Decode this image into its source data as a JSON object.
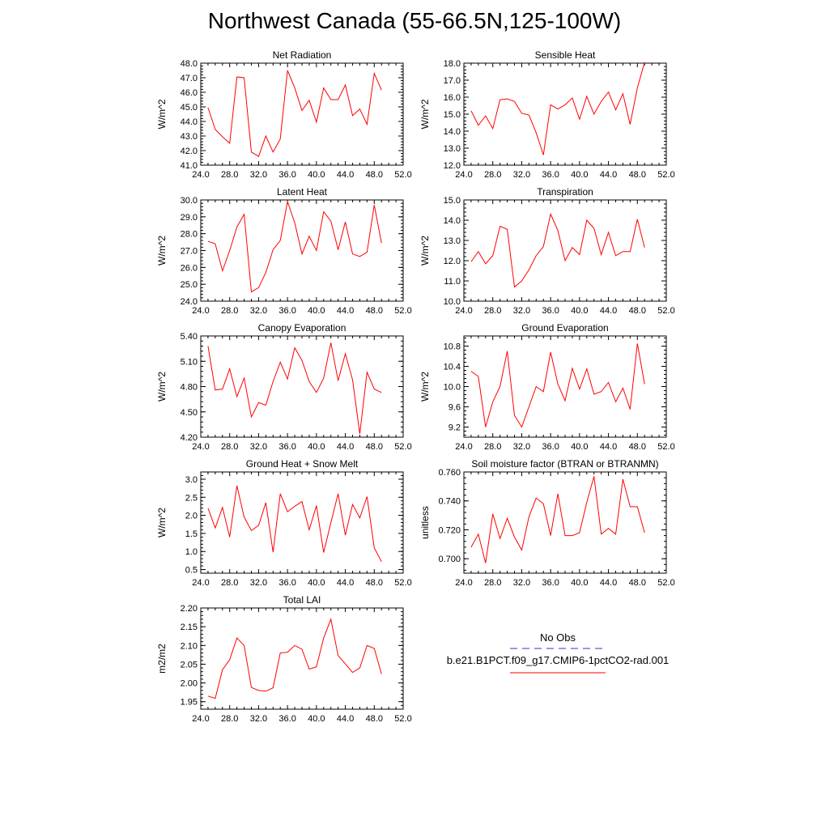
{
  "page_title": "Northwest Canada (55-66.5N,125-100W)",
  "legend": {
    "entries": [
      {
        "label": "No Obs",
        "color": "#3333cc",
        "dash": "dashed"
      },
      {
        "label": "b.e21.B1PCT.f09_g17.CMIP6-1pctCO2-rad.001",
        "color": "#ff0000",
        "dash": "solid"
      }
    ]
  },
  "chart_data": [
    {
      "type": "line",
      "title": "Net Radiation",
      "ylabel": "W/m^2",
      "xlabel": "",
      "xlim": [
        24,
        52
      ],
      "ylim": [
        41,
        48
      ],
      "xticks": [
        "24.0",
        "28.0",
        "32.0",
        "36.0",
        "40.0",
        "44.0",
        "48.0",
        "52.0"
      ],
      "yticks": [
        41,
        42,
        43,
        44,
        45,
        46,
        47,
        48
      ],
      "yticklabels": [
        "41.0",
        "42.0",
        "43.0",
        "44.0",
        "45.0",
        "46.0",
        "47.0",
        "48.0"
      ],
      "series": [
        {
          "color": "#ff0000",
          "x": [
            25,
            26,
            27,
            28,
            29,
            30,
            31,
            32,
            33,
            34,
            35,
            36,
            37,
            38,
            39,
            40,
            41,
            42,
            43,
            44,
            45,
            46,
            47,
            48,
            49
          ],
          "y": [
            44.95,
            43.45,
            42.95,
            42.5,
            47.05,
            47.0,
            41.9,
            41.6,
            43.0,
            41.9,
            42.8,
            47.5,
            46.3,
            44.75,
            45.45,
            43.95,
            46.3,
            45.5,
            45.5,
            46.5,
            44.4,
            44.85,
            43.8,
            47.3,
            46.15
          ]
        }
      ]
    },
    {
      "type": "line",
      "title": "Sensible Heat",
      "ylabel": "W/m^2",
      "xlabel": "",
      "xlim": [
        24,
        52
      ],
      "ylim": [
        12,
        18
      ],
      "xticks": [
        "24.0",
        "28.0",
        "32.0",
        "36.0",
        "40.0",
        "44.0",
        "48.0",
        "52.0"
      ],
      "yticks": [
        12,
        13,
        14,
        15,
        16,
        17,
        18
      ],
      "yticklabels": [
        "12.0",
        "13.0",
        "14.0",
        "15.0",
        "16.0",
        "17.0",
        "18.0"
      ],
      "series": [
        {
          "color": "#ff0000",
          "x": [
            25,
            26,
            27,
            28,
            29,
            30,
            31,
            32,
            33,
            34,
            35,
            36,
            37,
            38,
            39,
            40,
            41,
            42,
            43,
            44,
            45,
            46,
            47,
            48,
            49
          ],
          "y": [
            15.2,
            14.35,
            14.9,
            14.15,
            15.85,
            15.9,
            15.75,
            15.05,
            14.95,
            13.9,
            12.6,
            15.55,
            15.3,
            15.55,
            15.95,
            14.7,
            16.05,
            15.0,
            15.75,
            16.3,
            15.25,
            16.2,
            14.4,
            16.55,
            18.05
          ]
        }
      ]
    },
    {
      "type": "line",
      "title": "Latent Heat",
      "ylabel": "W/m^2",
      "xlabel": "",
      "xlim": [
        24,
        52
      ],
      "ylim": [
        24,
        30
      ],
      "xticks": [
        "24.0",
        "28.0",
        "32.0",
        "36.0",
        "40.0",
        "44.0",
        "48.0",
        "52.0"
      ],
      "yticks": [
        24,
        25,
        26,
        27,
        28,
        29,
        30
      ],
      "yticklabels": [
        "24.0",
        "25.0",
        "26.0",
        "27.0",
        "28.0",
        "29.0",
        "30.0"
      ],
      "series": [
        {
          "color": "#ff0000",
          "x": [
            25,
            26,
            27,
            28,
            29,
            30,
            31,
            32,
            33,
            34,
            35,
            36,
            37,
            38,
            39,
            40,
            41,
            42,
            43,
            44,
            45,
            46,
            47,
            48,
            49
          ],
          "y": [
            27.55,
            27.4,
            25.8,
            27.0,
            28.4,
            29.15,
            24.55,
            24.8,
            25.7,
            27.05,
            27.6,
            29.9,
            28.65,
            26.8,
            27.85,
            27.0,
            29.3,
            28.75,
            27.05,
            28.7,
            26.8,
            26.65,
            26.9,
            29.7,
            27.45
          ]
        }
      ]
    },
    {
      "type": "line",
      "title": "Transpiration",
      "ylabel": "W/m^2",
      "xlabel": "",
      "xlim": [
        24,
        52
      ],
      "ylim": [
        10,
        15
      ],
      "xticks": [
        "24.0",
        "28.0",
        "32.0",
        "36.0",
        "40.0",
        "44.0",
        "48.0",
        "52.0"
      ],
      "yticks": [
        10,
        11,
        12,
        13,
        14,
        15
      ],
      "yticklabels": [
        "10.0",
        "11.0",
        "12.0",
        "13.0",
        "14.0",
        "15.0"
      ],
      "series": [
        {
          "color": "#ff0000",
          "x": [
            25,
            26,
            27,
            28,
            29,
            30,
            31,
            32,
            33,
            34,
            35,
            36,
            37,
            38,
            39,
            40,
            41,
            42,
            43,
            44,
            45,
            46,
            47,
            48,
            49
          ],
          "y": [
            11.95,
            12.45,
            11.85,
            12.25,
            13.7,
            13.55,
            10.7,
            11.0,
            11.55,
            12.25,
            12.7,
            14.3,
            13.5,
            12.0,
            12.65,
            12.3,
            14.0,
            13.6,
            12.3,
            13.4,
            12.25,
            12.45,
            12.45,
            14.05,
            12.65
          ]
        }
      ]
    },
    {
      "type": "line",
      "title": "Canopy Evaporation",
      "ylabel": "W/m^2",
      "xlabel": "",
      "xlim": [
        24,
        52
      ],
      "ylim": [
        4.2,
        5.4
      ],
      "xticks": [
        "24.0",
        "28.0",
        "32.0",
        "36.0",
        "40.0",
        "44.0",
        "48.0",
        "52.0"
      ],
      "yticks": [
        4.2,
        4.5,
        4.8,
        5.1,
        5.4
      ],
      "yticklabels": [
        "4.20",
        "4.50",
        "4.80",
        "5.10",
        "5.40"
      ],
      "series": [
        {
          "color": "#ff0000",
          "x": [
            25,
            26,
            27,
            28,
            29,
            30,
            31,
            32,
            33,
            34,
            35,
            36,
            37,
            38,
            39,
            40,
            41,
            42,
            43,
            44,
            45,
            46,
            47,
            48,
            49
          ],
          "y": [
            5.28,
            4.76,
            4.77,
            5.01,
            4.68,
            4.9,
            4.44,
            4.61,
            4.58,
            4.86,
            5.09,
            4.89,
            5.26,
            5.11,
            4.86,
            4.73,
            4.9,
            5.32,
            4.87,
            5.19,
            4.88,
            4.24,
            4.97,
            4.77,
            4.73
          ]
        }
      ]
    },
    {
      "type": "line",
      "title": "Ground Evaporation",
      "ylabel": "W/m^2",
      "xlabel": "",
      "xlim": [
        24,
        52
      ],
      "ylim": [
        9.0,
        11.0
      ],
      "xticks": [
        "24.0",
        "28.0",
        "32.0",
        "36.0",
        "40.0",
        "44.0",
        "48.0",
        "52.0"
      ],
      "yticks": [
        9.2,
        9.6,
        10.0,
        10.4,
        10.8
      ],
      "yticklabels": [
        "9.2",
        "9.6",
        "10.0",
        "10.4",
        "10.8"
      ],
      "series": [
        {
          "color": "#ff0000",
          "x": [
            25,
            26,
            27,
            28,
            29,
            30,
            31,
            32,
            33,
            34,
            35,
            36,
            37,
            38,
            39,
            40,
            41,
            42,
            43,
            44,
            45,
            46,
            47,
            48,
            49
          ],
          "y": [
            10.3,
            10.2,
            9.2,
            9.7,
            10.0,
            10.7,
            9.43,
            9.2,
            9.6,
            10.0,
            9.9,
            10.68,
            10.05,
            9.72,
            10.36,
            9.95,
            10.35,
            9.85,
            9.9,
            10.08,
            9.7,
            9.97,
            9.55,
            10.85,
            10.05
          ]
        }
      ]
    },
    {
      "type": "line",
      "title": "Ground Heat + Snow Melt",
      "ylabel": "W/m^2",
      "xlabel": "",
      "xlim": [
        24,
        52
      ],
      "ylim": [
        0.4,
        3.2
      ],
      "xticks": [
        "24.0",
        "28.0",
        "32.0",
        "36.0",
        "40.0",
        "44.0",
        "48.0",
        "52.0"
      ],
      "yticks": [
        0.5,
        1.0,
        1.5,
        2.0,
        2.5,
        3.0
      ],
      "yticklabels": [
        "0.5",
        "1.0",
        "1.5",
        "2.0",
        "2.5",
        "3.0"
      ],
      "series": [
        {
          "color": "#ff0000",
          "x": [
            25,
            26,
            27,
            28,
            29,
            30,
            31,
            32,
            33,
            34,
            35,
            36,
            37,
            38,
            39,
            40,
            41,
            42,
            43,
            44,
            45,
            46,
            47,
            48,
            49
          ],
          "y": [
            2.2,
            1.65,
            2.22,
            1.4,
            2.82,
            1.95,
            1.58,
            1.72,
            2.35,
            0.98,
            2.6,
            2.1,
            2.25,
            2.38,
            1.6,
            2.27,
            0.97,
            1.8,
            2.6,
            1.45,
            2.3,
            1.93,
            2.52,
            1.1,
            0.72
          ]
        }
      ]
    },
    {
      "type": "line",
      "title": "Soil moisture factor (BTRAN or BTRANMN)",
      "ylabel": "unitless",
      "xlabel": "",
      "xlim": [
        24,
        52
      ],
      "ylim": [
        0.69,
        0.76
      ],
      "xticks": [
        "24.0",
        "28.0",
        "32.0",
        "36.0",
        "40.0",
        "44.0",
        "48.0",
        "52.0"
      ],
      "yticks": [
        0.7,
        0.72,
        0.74,
        0.76
      ],
      "yticklabels": [
        "0.700",
        "0.720",
        "0.740",
        "0.760"
      ],
      "series": [
        {
          "color": "#ff0000",
          "x": [
            25,
            26,
            27,
            28,
            29,
            30,
            31,
            32,
            33,
            34,
            35,
            36,
            37,
            38,
            39,
            40,
            41,
            42,
            43,
            44,
            45,
            46,
            47,
            48,
            49
          ],
          "y": [
            0.708,
            0.717,
            0.697,
            0.731,
            0.714,
            0.728,
            0.715,
            0.706,
            0.729,
            0.742,
            0.738,
            0.716,
            0.745,
            0.716,
            0.716,
            0.718,
            0.739,
            0.757,
            0.717,
            0.721,
            0.717,
            0.755,
            0.736,
            0.736,
            0.718
          ]
        }
      ]
    },
    {
      "type": "line",
      "title": "Total LAI",
      "ylabel": "m2/m2",
      "xlabel": "",
      "xlim": [
        24,
        52
      ],
      "ylim": [
        1.93,
        2.2
      ],
      "xticks": [
        "24.0",
        "28.0",
        "32.0",
        "36.0",
        "40.0",
        "44.0",
        "48.0",
        "52.0"
      ],
      "yticks": [
        1.95,
        2.0,
        2.05,
        2.1,
        2.15,
        2.2
      ],
      "yticklabels": [
        "1.95",
        "2.00",
        "2.05",
        "2.10",
        "2.15",
        "2.20"
      ],
      "series": [
        {
          "color": "#ff0000",
          "x": [
            25,
            26,
            27,
            28,
            29,
            30,
            31,
            32,
            33,
            34,
            35,
            36,
            37,
            38,
            39,
            40,
            41,
            42,
            43,
            44,
            45,
            46,
            47,
            48,
            49
          ],
          "y": [
            1.965,
            1.959,
            2.035,
            2.062,
            2.12,
            2.1,
            1.988,
            1.98,
            1.978,
            1.987,
            2.08,
            2.082,
            2.1,
            2.09,
            2.037,
            2.043,
            2.12,
            2.17,
            2.073,
            2.051,
            2.028,
            2.04,
            2.1,
            2.092,
            2.024
          ]
        }
      ]
    }
  ]
}
